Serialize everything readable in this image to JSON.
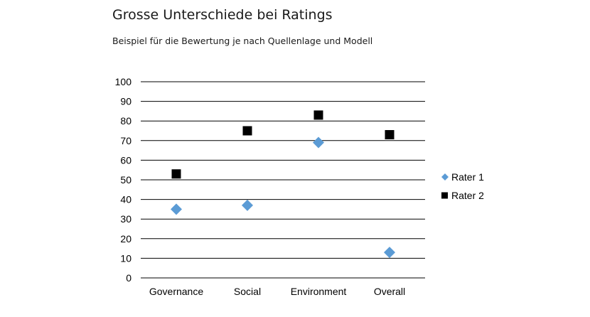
{
  "chart_data": {
    "type": "scatter",
    "title": "Grosse Unterschiede bei Ratings",
    "subtitle": "Beispiel für die Bewertung je nach Quellenlage und Modell",
    "categories": [
      "Governance",
      "Social",
      "Environment",
      "Overall"
    ],
    "xlabel": "",
    "ylabel": "",
    "ylim": [
      0,
      100
    ],
    "yticks": [
      0,
      10,
      20,
      30,
      40,
      50,
      60,
      70,
      80,
      90,
      100
    ],
    "grid": true,
    "legend_position": "right",
    "series": [
      {
        "name": "Rater 1",
        "marker": "diamond",
        "color": "#5b9bd5",
        "values": [
          35,
          37,
          69,
          13
        ]
      },
      {
        "name": "Rater 2",
        "marker": "square",
        "color": "#000000",
        "values": [
          53,
          75,
          83,
          73
        ]
      }
    ]
  }
}
